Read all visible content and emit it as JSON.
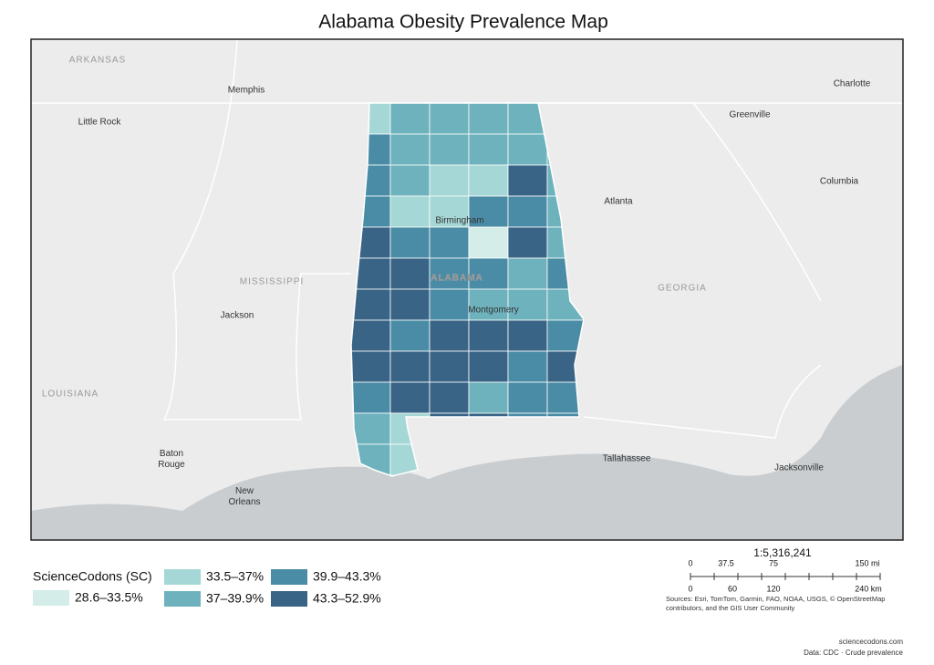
{
  "title": "Alabama Obesity Prevalence Map",
  "map": {
    "state_labels": [
      "ARKANSAS",
      "MISSISSIPPI",
      "LOUISIANA",
      "GEORGIA",
      "ALABAMA"
    ],
    "city_labels": [
      "Memphis",
      "Little Rock",
      "Jackson",
      "Baton Rouge",
      "New Orleans",
      "Birmingham",
      "Montgomery",
      "Atlanta",
      "Greenville",
      "Charlotte",
      "Columbia",
      "Tallahassee",
      "Jacksonville"
    ]
  },
  "legend": {
    "title": "ScienceCodons (SC)",
    "classes": [
      {
        "label": "28.6–33.5%",
        "color": "#d4ede9"
      },
      {
        "label": "33.5–37%",
        "color": "#a4d7d5"
      },
      {
        "label": "37–39.9%",
        "color": "#6db2bd"
      },
      {
        "label": "39.9–43.3%",
        "color": "#4a8ca5"
      },
      {
        "label": "43.3–52.9%",
        "color": "#3a6486"
      }
    ]
  },
  "scale": {
    "ratio": "1:5,316,241",
    "mi_ticks": [
      "0",
      "37.5",
      "75",
      "150 mi"
    ],
    "km_ticks": [
      "0",
      "60",
      "120",
      "240 km"
    ]
  },
  "sources": [
    "Sources: Esri, TomTom, Garmin, FAO, NOAA, USGS, © OpenStreetMap",
    "contributors, and the GIS User Community"
  ],
  "footer": {
    "site": "sciencecodons.com",
    "data_note": "Data: CDC · Crude prevalence"
  }
}
